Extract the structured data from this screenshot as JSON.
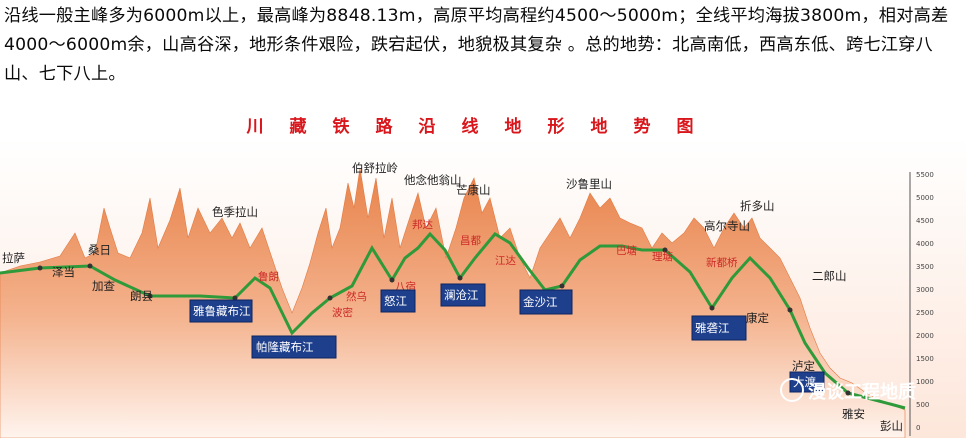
{
  "intro": "沿线一般主峰多为6000m以上，最高峰为8848.13m，高原平均高程约4500～5000m；全线平均海拔3800m，相对高差4000～6000m余，山高谷深，地形条件艰险，跌宕起伏，地貌极其复杂 。总的地势：北高南低，西高东低、跨七江穿八山、七下八上。",
  "title": "川藏铁路沿线地形地势图",
  "watermark": "漫谈工程地质",
  "axis_ticks": [
    "5500",
    "5000",
    "4500",
    "4000",
    "3500",
    "3000",
    "2500",
    "2000",
    "1500",
    "1000",
    "500",
    "0"
  ],
  "colors": {
    "terrain_top": "#e8824a",
    "terrain_bottom": "#fff2ea",
    "route": "#2f9a3a",
    "river_box": "#1e3f8c",
    "title": "#d8161b"
  },
  "labels": {
    "lasa": "拉萨",
    "sangri": "桑日",
    "zedang": "泽当",
    "jiacha": "加查",
    "langxian": "朗县",
    "seji": "色季拉山",
    "lulang": "鲁朗",
    "bomi": "波密",
    "boshula": "伯舒拉岭",
    "tanian": "他念他翁山",
    "mangkang": "芒康山",
    "shalu": "沙鲁里山",
    "zheduo": "折多山",
    "gaoersi": "高尔寺山",
    "erlang": "二郎山",
    "pengshan": "彭山",
    "yaan": "雅安",
    "luding": "泸定",
    "kangding": "康定",
    "xinduqiao": "新都桥",
    "litang": "理塘",
    "batang": "巴塘",
    "jiangda": "江达",
    "changdu": "昌都",
    "bangda": "邦达",
    "basu": "八宿",
    "ranwu": "然乌",
    "hezi": "林芝"
  },
  "rivers": {
    "yarlung": "雅鲁藏布江",
    "parlung": "帕隆藏布江",
    "nujiang": "怒江",
    "lancang": "澜沧江",
    "jinsha": "金沙江",
    "yalong": "雅砻江",
    "dadu": "大渡"
  }
}
